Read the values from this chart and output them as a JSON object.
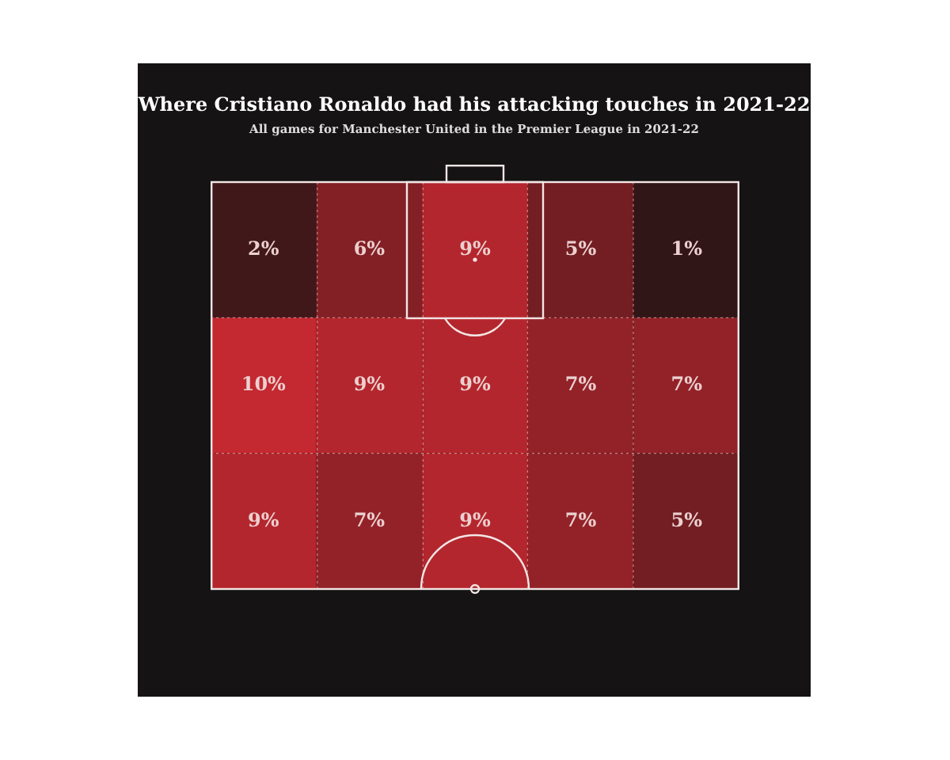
{
  "chart_data": {
    "type": "heatmap",
    "title": "Where Cristiano Ronaldo had his attacking touches in 2021-22",
    "subtitle": "All games for Manchester United in the Premier League in 2021-22",
    "categories": [
      null,
      null,
      null,
      null,
      null
    ],
    "y_categories": [
      null,
      null,
      null
    ],
    "cells": [
      [
        2,
        6,
        9,
        5,
        1
      ],
      [
        10,
        9,
        9,
        7,
        7
      ],
      [
        9,
        7,
        9,
        7,
        5
      ]
    ],
    "cell_labels": [
      [
        "2%",
        "6%",
        "9%",
        "5%",
        "1%"
      ],
      [
        "10%",
        "9%",
        "9%",
        "7%",
        "7%"
      ],
      [
        "9%",
        "7%",
        "9%",
        "7%",
        "5%"
      ]
    ],
    "tick_labels": false
  }
}
